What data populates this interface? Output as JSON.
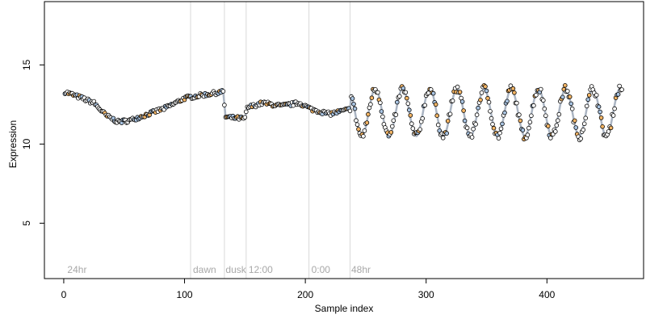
{
  "chart_data": {
    "type": "scatter",
    "title": "",
    "xlabel": "Sample index",
    "ylabel": "Expression",
    "xlim": [
      -16,
      480
    ],
    "ylim": [
      1.5,
      19.0
    ],
    "x_ticks": [
      0,
      100,
      200,
      300,
      400
    ],
    "x_tick_labels": [
      "0",
      "100",
      "200",
      "300",
      "400"
    ],
    "y_ticks": [
      5,
      10,
      15
    ],
    "y_tick_labels": [
      "5",
      "10",
      "15"
    ],
    "grid": false,
    "legend": "none",
    "segment_boundaries": [
      105,
      133,
      151,
      203,
      237
    ],
    "segment_labels": [
      {
        "text": "24hr",
        "x": 3
      },
      {
        "text": "dawn",
        "x": 107
      },
      {
        "text": "dusk",
        "x": 134
      },
      {
        "text": "12:00",
        "x": 153
      },
      {
        "text": "0:00",
        "x": 205
      },
      {
        "text": "48hr",
        "x": 238
      }
    ],
    "trend_anchors": [
      [
        1,
        13.3
      ],
      [
        15,
        12.9
      ],
      [
        25,
        12.6
      ],
      [
        35,
        11.8
      ],
      [
        45,
        11.4
      ],
      [
        55,
        11.5
      ],
      [
        70,
        11.9
      ],
      [
        85,
        12.3
      ],
      [
        100,
        12.9
      ],
      [
        115,
        13.1
      ],
      [
        132,
        13.3
      ],
      [
        134,
        11.7
      ],
      [
        150,
        11.6
      ],
      [
        152,
        12.3
      ],
      [
        165,
        12.6
      ],
      [
        180,
        12.4
      ],
      [
        195,
        12.6
      ],
      [
        205,
        12.2
      ],
      [
        220,
        11.9
      ],
      [
        237,
        12.2
      ]
    ],
    "oscillation": {
      "x_start": 237,
      "x_end": 462,
      "mean": 12.0,
      "amplitude": 1.5,
      "period": 22.5,
      "phase_peak_x": 258
    },
    "colors": {
      "points_fill_palette": [
        "#ffffff",
        "#ffffff",
        "#ffffff",
        "#f4b565",
        "#a9c4e2"
      ],
      "point_stroke": "#000000",
      "trend_line": "#aab4c2",
      "segment_line": "#d9d9d9",
      "segment_label": "#a8a8a8",
      "axis": "#000000"
    }
  }
}
